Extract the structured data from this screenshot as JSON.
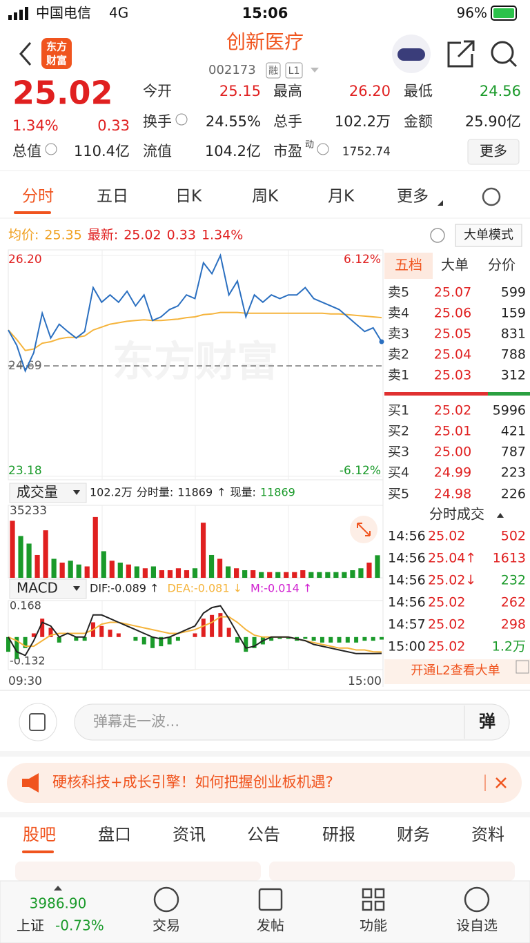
{
  "status": {
    "carrier": "中国电信",
    "network": "4G",
    "time": "15:06",
    "battery": "96%"
  },
  "header": {
    "logo": [
      "东方",
      "财富"
    ],
    "title": "创新医疗",
    "code": "002173",
    "badges": [
      "融",
      "L1"
    ]
  },
  "quote": {
    "price": "25.02",
    "change_pct": "1.34%",
    "change": "0.33",
    "more": "更多",
    "fields": [
      {
        "label": "今开",
        "value": "25.15",
        "color": "#e02020"
      },
      {
        "label": "最高",
        "value": "26.20",
        "color": "#e02020"
      },
      {
        "label": "最低",
        "value": "24.56",
        "color": "#1a9a2a"
      },
      {
        "label": "换手",
        "value": "24.55%",
        "color": "#222222"
      },
      {
        "label": "总手",
        "value": "102.2万",
        "color": "#222222"
      },
      {
        "label": "金额",
        "value": "25.90亿",
        "color": "#222222"
      },
      {
        "label": "总值",
        "value": "110.4亿",
        "color": "#222222"
      },
      {
        "label": "流值",
        "value": "104.2亿",
        "color": "#222222"
      },
      {
        "label": "市盈",
        "sup": "动",
        "value": "1752.74",
        "color": "#222222"
      }
    ]
  },
  "chart_tabs": [
    "分时",
    "五日",
    "日K",
    "周K",
    "月K",
    "更多"
  ],
  "info": {
    "avg_label": "均价:",
    "avg": "25.35",
    "last_label": "最新:",
    "last": "25.02",
    "change": "0.33",
    "change_pct": "1.34%",
    "mode": "大单模式"
  },
  "price_chart": {
    "type": "line",
    "watermark": "东方财富",
    "ylim": [
      23.18,
      26.2
    ],
    "yticks": [
      {
        "value": 26.2,
        "label": "26.20"
      },
      24.69,
      23.18
    ],
    "pct_labels": [
      "6.12%",
      "-6.12%"
    ],
    "price": [
      25.18,
      24.97,
      24.62,
      24.87,
      25.41,
      25.07,
      25.26,
      25.16,
      25.07,
      25.16,
      25.76,
      25.56,
      25.66,
      25.56,
      25.71,
      25.51,
      25.66,
      25.31,
      25.36,
      25.46,
      25.51,
      25.66,
      25.61,
      26.1,
      25.95,
      26.2,
      25.66,
      25.85,
      25.36,
      25.66,
      25.56,
      25.66,
      25.61,
      25.66,
      25.66,
      25.76,
      25.61,
      25.56,
      25.51,
      25.46,
      25.36,
      25.26,
      25.16,
      25.21,
      25.02
    ],
    "avg": [
      25.18,
      25.05,
      24.9,
      24.92,
      25.0,
      25.02,
      25.06,
      25.08,
      25.08,
      25.1,
      25.18,
      25.22,
      25.26,
      25.28,
      25.3,
      25.31,
      25.32,
      25.31,
      25.31,
      25.32,
      25.33,
      25.35,
      25.36,
      25.39,
      25.4,
      25.42,
      25.42,
      25.42,
      25.41,
      25.41,
      25.41,
      25.41,
      25.41,
      25.41,
      25.41,
      25.41,
      25.41,
      25.41,
      25.4,
      25.4,
      25.39,
      25.38,
      25.37,
      25.36,
      25.35
    ],
    "price_color": "#2a6fc0",
    "avg_color": "#f5b43c",
    "x_labels": [
      "09:30",
      "15:00"
    ]
  },
  "volume_chart": {
    "type": "bar",
    "label": "成交量",
    "summary": [
      {
        "text": "102.2万",
        "color": "#222222"
      },
      {
        "text": "分时量:",
        "color": "#222222"
      },
      {
        "text": "11869",
        "color": "#222222"
      },
      {
        "text": "↑",
        "color": "#222222"
      },
      {
        "text": "现量:",
        "color": "#222222"
      },
      {
        "text": "11869",
        "color": "#1a9a2a"
      }
    ],
    "ylim": [
      0,
      35233
    ],
    "yticks": [
      35233
    ],
    "up_color": "#e02020",
    "down_color": "#1a9a2a",
    "values": [
      30000,
      22000,
      18000,
      12000,
      25000,
      10000,
      8000,
      9000,
      7000,
      6000,
      32000,
      14000,
      9000,
      8000,
      7000,
      6000,
      5000,
      6000,
      4000,
      4000,
      5000,
      4000,
      5000,
      29000,
      12000,
      10000,
      6000,
      5000,
      4000,
      4000,
      3000,
      3000,
      3000,
      3000,
      3000,
      4000,
      3000,
      3000,
      3000,
      3000,
      3000,
      4000,
      5000,
      8000,
      11869
    ]
  },
  "macd_chart": {
    "type": "bar",
    "label": "MACD",
    "legend": [
      {
        "text": "DIF:-0.089 ↑",
        "color": "#222222"
      },
      {
        "text": "DEA:-0.081 ↓",
        "color": "#f5b43c"
      },
      {
        "text": "M:-0.014 ↑",
        "color": "#d020d0"
      }
    ],
    "ylim": [
      -0.132,
      0.168
    ],
    "yticks": [
      0.168,
      -0.132
    ],
    "dif_color": "#222222",
    "dea_color": "#f5b43c",
    "hist": [
      -0.08,
      -0.12,
      -0.06,
      0.02,
      0.1,
      0.05,
      -0.03,
      0.0,
      -0.02,
      -0.02,
      0.08,
      0.06,
      0.04,
      0.02,
      0.0,
      -0.02,
      -0.04,
      -0.06,
      -0.05,
      -0.04,
      -0.02,
      0.0,
      0.02,
      0.1,
      0.12,
      0.13,
      0.05,
      -0.03,
      -0.08,
      -0.06,
      -0.04,
      -0.02,
      -0.01,
      -0.01,
      -0.02,
      -0.01,
      -0.02,
      -0.03,
      -0.03,
      -0.03,
      -0.03,
      -0.03,
      -0.02,
      -0.02,
      -0.014
    ],
    "dif": [
      0.0,
      -0.08,
      -0.1,
      -0.02,
      0.08,
      0.06,
      0.0,
      0.02,
      0.0,
      0.0,
      0.12,
      0.12,
      0.1,
      0.08,
      0.06,
      0.04,
      0.02,
      0.0,
      -0.01,
      0.0,
      0.02,
      0.04,
      0.06,
      0.13,
      0.16,
      0.17,
      0.1,
      0.02,
      -0.06,
      -0.05,
      -0.02,
      0.0,
      0.0,
      0.0,
      -0.01,
      -0.02,
      -0.04,
      -0.05,
      -0.06,
      -0.07,
      -0.08,
      -0.09,
      -0.09,
      -0.09,
      -0.089
    ],
    "dea": [
      0.0,
      -0.02,
      -0.05,
      -0.05,
      -0.02,
      0.01,
      0.02,
      0.02,
      0.02,
      0.02,
      0.04,
      0.07,
      0.08,
      0.08,
      0.07,
      0.06,
      0.05,
      0.04,
      0.03,
      0.02,
      0.02,
      0.03,
      0.04,
      0.06,
      0.08,
      0.11,
      0.11,
      0.08,
      0.04,
      0.01,
      0.0,
      0.0,
      0.0,
      0.0,
      -0.01,
      -0.02,
      -0.03,
      -0.04,
      -0.05,
      -0.06,
      -0.06,
      -0.07,
      -0.07,
      -0.08,
      -0.081
    ]
  },
  "order_book": {
    "tabs": [
      "五档",
      "大单",
      "分价"
    ],
    "sell": [
      {
        "label": "卖5",
        "price": "25.07",
        "volume": "599"
      },
      {
        "label": "卖4",
        "price": "25.06",
        "volume": "159"
      },
      {
        "label": "卖3",
        "price": "25.05",
        "volume": "831"
      },
      {
        "label": "卖2",
        "price": "25.04",
        "volume": "788"
      },
      {
        "label": "卖1",
        "price": "25.03",
        "volume": "312"
      }
    ],
    "buy": [
      {
        "label": "买1",
        "price": "25.02",
        "volume": "5996"
      },
      {
        "label": "买2",
        "price": "25.01",
        "volume": "421"
      },
      {
        "label": "买3",
        "price": "25.00",
        "volume": "787"
      },
      {
        "label": "买4",
        "price": "24.99",
        "volume": "223"
      },
      {
        "label": "买5",
        "price": "24.98",
        "volume": "226"
      }
    ]
  },
  "trades": {
    "title": "分时成交",
    "l2": "开通L2查看大单",
    "rows": [
      {
        "time": "14:56",
        "price": "25.02",
        "volume": "502",
        "color": "#e02020"
      },
      {
        "time": "14:56",
        "price": "25.04↑",
        "volume": "1613",
        "color": "#e02020"
      },
      {
        "time": "14:56",
        "price": "25.02↓",
        "volume": "232",
        "color": "#1a9a2a"
      },
      {
        "time": "14:56",
        "price": "25.02",
        "volume": "262",
        "color": "#e02020"
      },
      {
        "time": "14:57",
        "price": "25.02",
        "volume": "298",
        "color": "#e02020"
      },
      {
        "time": "15:00",
        "price": "25.02",
        "volume": "1.2万",
        "color": "#1a9a2a"
      }
    ]
  },
  "chat": {
    "placeholder": "弹幕走一波...",
    "button": "弹"
  },
  "banner": "硬核科技+成长引擎！如何把握创业板机遇?",
  "bottom_tabs": [
    "股吧",
    "盘口",
    "资讯",
    "公告",
    "研报",
    "财务",
    "资料"
  ],
  "nav": {
    "index_value": "3986.90",
    "index_name": "上证",
    "index_change": "-0.73%",
    "items": [
      "交易",
      "发帖",
      "功能",
      "设自选"
    ]
  }
}
